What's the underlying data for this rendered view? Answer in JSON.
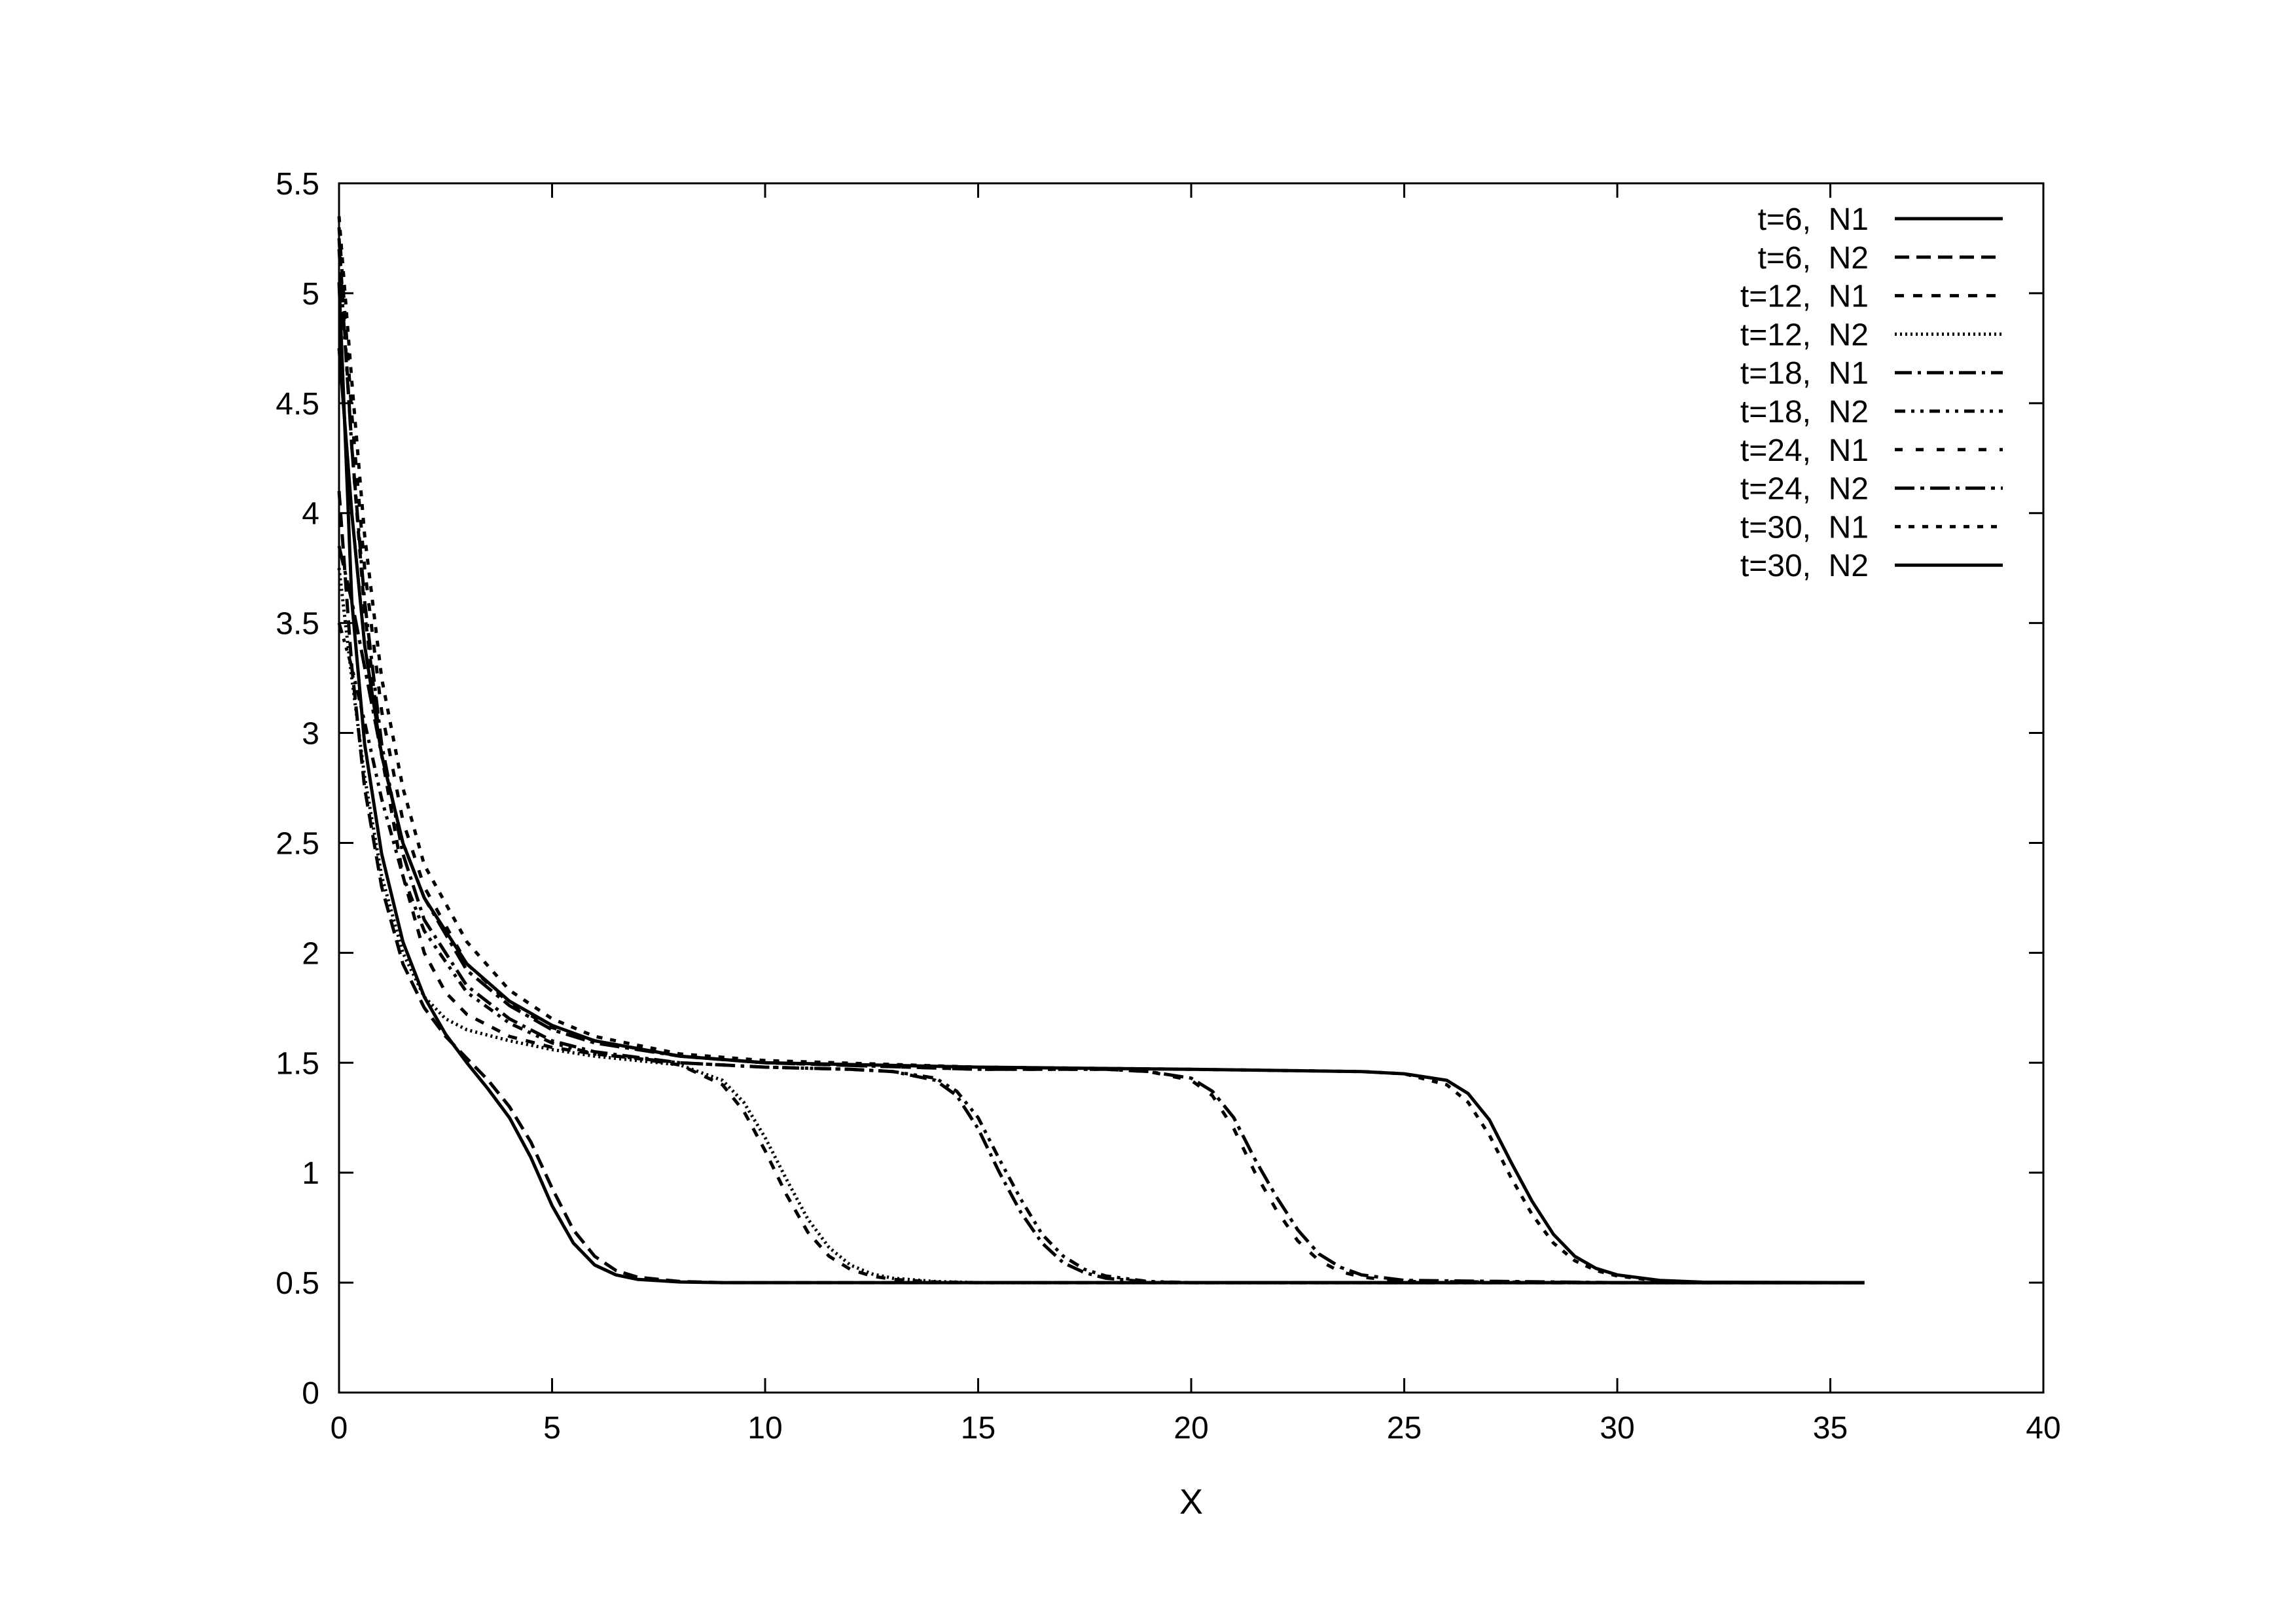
{
  "chart_data": {
    "type": "line",
    "title": "",
    "xlabel": "X",
    "ylabel": "",
    "xlim": [
      0,
      40
    ],
    "ylim": [
      0,
      5.5
    ],
    "xticks": [
      0,
      5,
      10,
      15,
      20,
      25,
      30,
      35,
      40
    ],
    "yticks": [
      0,
      0.5,
      1,
      1.5,
      2,
      2.5,
      3,
      3.5,
      4,
      4.5,
      5,
      5.5
    ],
    "grid": false,
    "legend_position": "top-right",
    "line_color": "#000000",
    "series": [
      {
        "name": "t=6,  N1",
        "dash": "solid",
        "x": [
          0,
          0.3,
          0.6,
          1,
          1.5,
          2,
          2.5,
          3,
          3.5,
          4,
          4.5,
          5,
          5.5,
          6,
          6.5,
          7,
          8,
          9,
          10,
          15,
          20,
          25,
          30,
          35.8
        ],
        "y": [
          5.05,
          3.6,
          2.95,
          2.45,
          2.05,
          1.8,
          1.63,
          1.5,
          1.38,
          1.25,
          1.07,
          0.85,
          0.68,
          0.58,
          0.535,
          0.515,
          0.503,
          0.5,
          0.5,
          0.5,
          0.5,
          0.5,
          0.5,
          0.5
        ]
      },
      {
        "name": "t=6,  N2",
        "dash": "dashed",
        "x": [
          0,
          0.3,
          0.6,
          1,
          1.5,
          2,
          2.5,
          3,
          3.5,
          4,
          4.5,
          5,
          5.5,
          6,
          6.5,
          7,
          8,
          9,
          10,
          15,
          20,
          25,
          30,
          35.8
        ],
        "y": [
          4.1,
          3.3,
          2.75,
          2.3,
          1.95,
          1.75,
          1.62,
          1.52,
          1.42,
          1.3,
          1.14,
          0.93,
          0.74,
          0.62,
          0.555,
          0.525,
          0.505,
          0.5,
          0.5,
          0.5,
          0.5,
          0.5,
          0.5,
          0.5
        ]
      },
      {
        "name": "t=12,  N1",
        "dash": "short-dashed",
        "x": [
          0,
          0.3,
          0.6,
          1,
          1.5,
          2,
          2.5,
          3,
          4,
          5,
          6,
          7,
          8,
          9,
          9.5,
          10,
          10.5,
          11,
          11.5,
          12,
          12.5,
          13,
          14,
          15,
          20,
          25,
          30,
          35.8
        ],
        "y": [
          5.25,
          4.3,
          3.55,
          2.9,
          2.35,
          2.0,
          1.82,
          1.72,
          1.62,
          1.57,
          1.54,
          1.52,
          1.49,
          1.4,
          1.28,
          1.1,
          0.9,
          0.73,
          0.62,
          0.56,
          0.53,
          0.515,
          0.503,
          0.5,
          0.5,
          0.5,
          0.5,
          0.5
        ]
      },
      {
        "name": "t=12,  N2",
        "dash": "dotted",
        "x": [
          0,
          0.3,
          0.6,
          1,
          1.5,
          2,
          2.5,
          3,
          4,
          5,
          6,
          7,
          8,
          9,
          9.5,
          10,
          10.5,
          11,
          11.5,
          12,
          12.5,
          13,
          14,
          15,
          20,
          25,
          30,
          35.8
        ],
        "y": [
          3.75,
          3.25,
          2.8,
          2.35,
          2.0,
          1.8,
          1.7,
          1.65,
          1.6,
          1.56,
          1.53,
          1.51,
          1.49,
          1.42,
          1.32,
          1.16,
          0.97,
          0.79,
          0.66,
          0.58,
          0.54,
          0.52,
          0.505,
          0.5,
          0.5,
          0.5,
          0.5,
          0.5
        ]
      },
      {
        "name": "t=18,  N1",
        "dash": "dash-dot",
        "x": [
          0,
          0.3,
          0.6,
          1,
          1.5,
          2,
          3,
          4,
          5,
          6,
          8,
          10,
          12,
          13,
          14,
          14.5,
          15,
          15.5,
          16,
          16.5,
          17,
          17.5,
          18,
          19,
          20,
          25,
          30,
          35.8
        ],
        "y": [
          5.2,
          4.3,
          3.6,
          2.95,
          2.45,
          2.15,
          1.85,
          1.7,
          1.6,
          1.55,
          1.5,
          1.48,
          1.47,
          1.46,
          1.42,
          1.35,
          1.2,
          1.0,
          0.82,
          0.68,
          0.59,
          0.545,
          0.52,
          0.503,
          0.5,
          0.5,
          0.5,
          0.5
        ]
      },
      {
        "name": "t=18,  N2",
        "dash": "dash-dot-dot",
        "x": [
          0,
          0.3,
          0.6,
          1,
          1.5,
          2,
          3,
          4,
          5,
          6,
          8,
          10,
          12,
          13,
          14,
          14.5,
          15,
          15.5,
          16,
          16.5,
          17,
          17.5,
          18,
          19,
          20,
          25,
          30,
          35.8
        ],
        "y": [
          3.5,
          3.3,
          3.05,
          2.7,
          2.35,
          2.1,
          1.82,
          1.68,
          1.59,
          1.54,
          1.5,
          1.48,
          1.47,
          1.46,
          1.43,
          1.37,
          1.25,
          1.06,
          0.88,
          0.72,
          0.62,
          0.56,
          0.53,
          0.505,
          0.5,
          0.5,
          0.5,
          0.5
        ]
      },
      {
        "name": "t=24,  N1",
        "dash": "wide-dash",
        "x": [
          0,
          0.3,
          0.6,
          1,
          1.5,
          2,
          3,
          4,
          5,
          6,
          8,
          10,
          15,
          18,
          19,
          20,
          20.5,
          21,
          21.5,
          22,
          22.5,
          23,
          23.5,
          24,
          25,
          30,
          35.8
        ],
        "y": [
          5.3,
          4.45,
          3.75,
          3.1,
          2.6,
          2.3,
          1.95,
          1.77,
          1.66,
          1.6,
          1.53,
          1.5,
          1.47,
          1.47,
          1.46,
          1.42,
          1.35,
          1.2,
          1.0,
          0.83,
          0.69,
          0.6,
          0.55,
          0.525,
          0.505,
          0.5,
          0.5
        ]
      },
      {
        "name": "t=24,  N2",
        "dash": "dash-dot-long",
        "x": [
          0,
          0.3,
          0.6,
          1,
          1.5,
          2,
          3,
          4,
          5,
          6,
          8,
          10,
          15,
          18,
          19,
          20,
          20.5,
          21,
          21.5,
          22,
          22.5,
          23,
          23.5,
          24,
          25,
          30,
          35.8
        ],
        "y": [
          3.85,
          3.6,
          3.3,
          2.9,
          2.5,
          2.25,
          1.92,
          1.76,
          1.65,
          1.59,
          1.53,
          1.5,
          1.47,
          1.47,
          1.46,
          1.43,
          1.37,
          1.25,
          1.06,
          0.89,
          0.74,
          0.63,
          0.57,
          0.535,
          0.51,
          0.5,
          0.5
        ]
      },
      {
        "name": "t=30,  N1",
        "dash": "fine-dash",
        "x": [
          0,
          0.3,
          0.6,
          1,
          1.5,
          2,
          3,
          4,
          5,
          6,
          8,
          10,
          15,
          20,
          24,
          25,
          26,
          26.5,
          27,
          27.5,
          28,
          28.5,
          29,
          29.5,
          30,
          31,
          32,
          35.8
        ],
        "y": [
          5.35,
          4.6,
          3.9,
          3.25,
          2.75,
          2.4,
          2.05,
          1.83,
          1.7,
          1.62,
          1.54,
          1.51,
          1.48,
          1.47,
          1.46,
          1.45,
          1.4,
          1.32,
          1.17,
          0.98,
          0.81,
          0.68,
          0.6,
          0.555,
          0.53,
          0.507,
          0.501,
          0.5
        ]
      },
      {
        "name": "t=30,  N2",
        "dash": "solid",
        "x": [
          0,
          0.3,
          0.6,
          1,
          1.5,
          2,
          3,
          4,
          5,
          6,
          8,
          10,
          15,
          20,
          24,
          25,
          26,
          26.5,
          27,
          27.5,
          28,
          28.5,
          29,
          29.5,
          30,
          31,
          32,
          35.8
        ],
        "y": [
          4.75,
          4.0,
          3.4,
          2.9,
          2.5,
          2.25,
          1.95,
          1.78,
          1.67,
          1.6,
          1.53,
          1.5,
          1.48,
          1.47,
          1.46,
          1.45,
          1.42,
          1.36,
          1.24,
          1.05,
          0.87,
          0.72,
          0.62,
          0.565,
          0.535,
          0.51,
          0.502,
          0.5
        ]
      }
    ]
  }
}
